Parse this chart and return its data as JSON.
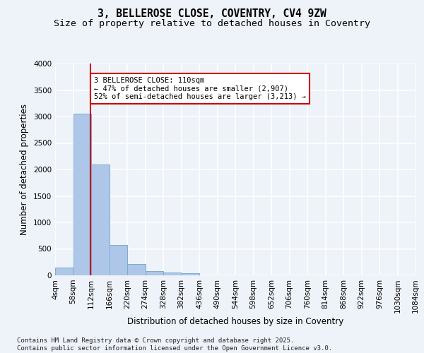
{
  "title_line1": "3, BELLEROSE CLOSE, COVENTRY, CV4 9ZW",
  "title_line2": "Size of property relative to detached houses in Coventry",
  "xlabel": "Distribution of detached houses by size in Coventry",
  "ylabel": "Number of detached properties",
  "bar_edges": [
    4,
    58,
    112,
    166,
    220,
    274,
    328,
    382,
    436,
    490,
    544,
    598,
    652,
    706,
    760,
    814,
    868,
    922,
    976,
    1030,
    1084
  ],
  "bar_heights": [
    150,
    3050,
    2100,
    580,
    220,
    80,
    50,
    40,
    5,
    5,
    0,
    0,
    0,
    0,
    0,
    0,
    0,
    0,
    0,
    0
  ],
  "bar_color": "#aec6e8",
  "bar_edgecolor": "#7aadd4",
  "vline_x": 110,
  "vline_color": "#cc0000",
  "ylim": [
    0,
    4000
  ],
  "yticks": [
    0,
    500,
    1000,
    1500,
    2000,
    2500,
    3000,
    3500,
    4000
  ],
  "annotation_line1": "3 BELLEROSE CLOSE: 110sqm",
  "annotation_line2": "← 47% of detached houses are smaller (2,907)",
  "annotation_line3": "52% of semi-detached houses are larger (3,213) →",
  "annotation_box_color": "#cc0000",
  "annotation_box_fill": "#ffffff",
  "footer_text": "Contains HM Land Registry data © Crown copyright and database right 2025.\nContains public sector information licensed under the Open Government Licence v3.0.",
  "background_color": "#eef2f9",
  "grid_color": "#ffffff",
  "title_fontsize": 10.5,
  "subtitle_fontsize": 9.5,
  "axis_label_fontsize": 8.5,
  "tick_fontsize": 7.5,
  "annotation_fontsize": 7.5,
  "footer_fontsize": 6.5
}
